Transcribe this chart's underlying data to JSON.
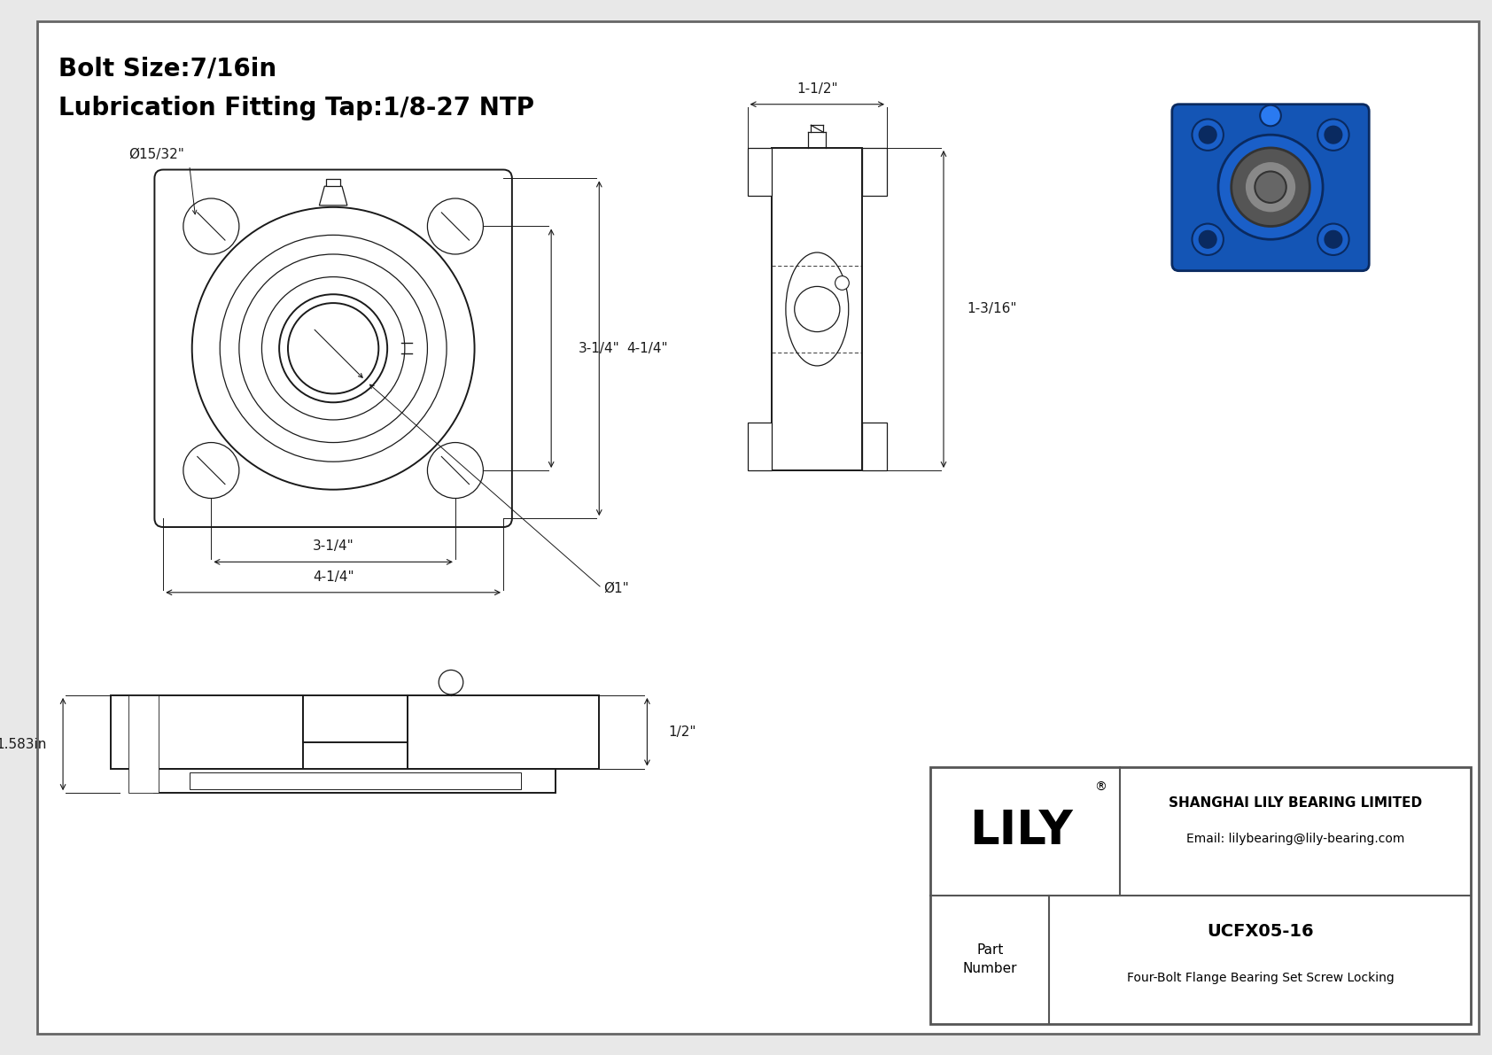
{
  "bg_color": "#e8e8e8",
  "line_color": "#1a1a1a",
  "dim_color": "#1a1a1a",
  "title_line1": "Bolt Size:7/16in",
  "title_line2": "Lubrication Fitting Tap:1/8-27 NTP",
  "company_name": "SHANGHAI LILY BEARING LIMITED",
  "company_email": "Email: lilybearing@lily-bearing.com",
  "part_number": "UCFX05-16",
  "part_desc": "Four-Bolt Flange Bearing Set Screw Locking",
  "logo_text": "LILY",
  "dim_bh_span": "3-1/4\"",
  "dim_sq_side": "4-1/4\"",
  "dim_vert_bh": "3-1/4\"",
  "dim_vert_sq": "4-1/4\"",
  "dim_bolt_hole": "Ø15/32\"",
  "dim_bore": "Ø1\"",
  "dim_side_w1": "1-1/2\"",
  "dim_side_h1": "1-3/16\"",
  "dim_height": "1.583in",
  "dim_half": "1/2\""
}
